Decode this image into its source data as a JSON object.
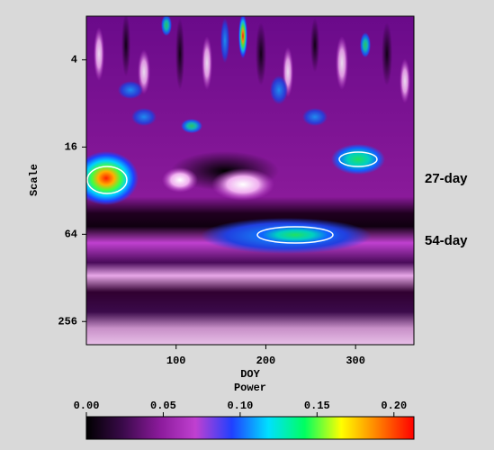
{
  "chart_data": {
    "type": "heatmap",
    "y_label": "Scale",
    "x_label": "DOY",
    "colorbar_label": "Power",
    "annotations": [
      "27-day",
      "54-day"
    ],
    "xlim": [
      0,
      365
    ],
    "xticks": [
      100,
      200,
      300
    ],
    "ylim": [
      2,
      370
    ],
    "yticks": [
      4,
      16,
      64,
      256
    ],
    "y_log_scale": true,
    "y_inverted": true,
    "colorbar_lim": [
      0,
      0.213
    ],
    "colorbar_ticks": [
      {
        "value": 0,
        "label": "0.00"
      },
      {
        "value": 0.05,
        "label": "0.05"
      },
      {
        "value": 0.1,
        "label": "0.10"
      },
      {
        "value": 0.15,
        "label": "0.15"
      },
      {
        "value": 0.2,
        "label": "0.20"
      }
    ],
    "colorscale": [
      "#000000",
      "#3a0a4a",
      "#8a1a9a",
      "#c040d0",
      "#2040ff",
      "#00e0ff",
      "#00ff60",
      "#ffff00",
      "#ff8000",
      "#ff0000"
    ]
  }
}
